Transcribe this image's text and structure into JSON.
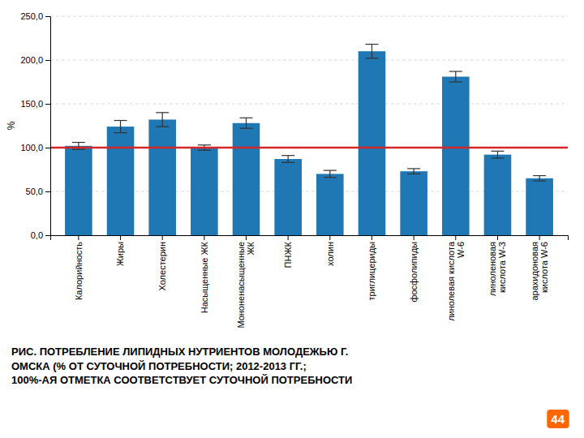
{
  "chart_data": {
    "type": "bar",
    "title": "РИС. ПОТРЕБЛЕНИЕ ЛИПИДНЫХ НУТРИЕНТОВ МОЛОДЕЖЬЮ Г.\nОМСКА (% ОТ СУТОЧНОЙ ПОТРЕБНОСТИ; 2012-2013 ГГ.;\n100%-АЯ ОТМЕТКА СООТВЕТСТВУЕТ СУТОЧНОЙ ПОТРЕБНОСТИ",
    "ylabel": "%",
    "categories": [
      "Калорийность",
      "Жиры",
      "Холестерин",
      "Насыщенные ЖК",
      "Мононенасыщенные\nЖК",
      "ПНЖК",
      "холин",
      "триглицериды",
      "фосфолипиды",
      "линолевая кислота\nW-6",
      "линоленовая\nкислота W-3",
      "арахидоновая\nкислота W-6"
    ],
    "values": [
      102.0,
      124.0,
      132.0,
      100.0,
      128.0,
      87.0,
      70.0,
      210.0,
      73.0,
      181.0,
      92.0,
      65.0
    ],
    "errors": [
      4.0,
      7.0,
      8.0,
      3.0,
      6.0,
      4.0,
      4.0,
      8.0,
      3.0,
      6.0,
      4.0,
      3.0
    ],
    "reference_line": 100.0,
    "ylim": [
      0.0,
      250.0
    ],
    "yticks": [
      {
        "value": 0.0,
        "label": "0,0"
      },
      {
        "value": 50.0,
        "label": "50,0"
      },
      {
        "value": 100.0,
        "label": "100,0"
      },
      {
        "value": 150.0,
        "label": "150,0"
      },
      {
        "value": 200.0,
        "label": "200,0"
      },
      {
        "value": 250.0,
        "label": "250,0"
      }
    ],
    "grid": true,
    "annotations": [
      "44"
    ]
  }
}
